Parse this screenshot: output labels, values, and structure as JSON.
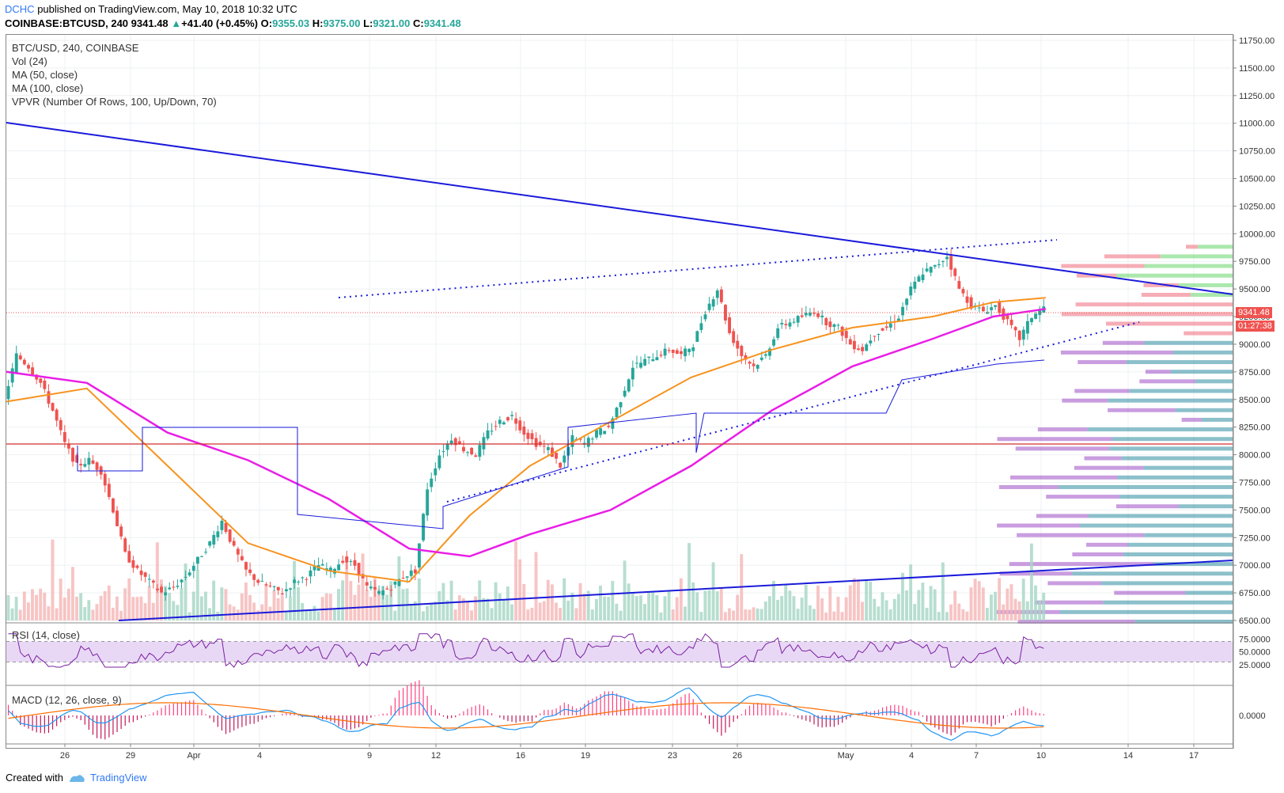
{
  "header": {
    "user": "DCHC",
    "published": "published on TradingView.com, May 10, 2018 10:32 UTC",
    "symbol": "COINBASE:BTCUSD, 240",
    "last": "9341.48",
    "change": "+41.40 (+0.45%)",
    "o_label": "O:",
    "o": "9355.03",
    "h_label": "H:",
    "h": "9375.00",
    "l_label": "L:",
    "l": "9321.00",
    "c_label": "C:",
    "c": "9341.48"
  },
  "legend": {
    "symbol": "BTC/USD, 240, COINBASE",
    "vol": "Vol (24)",
    "ma50": "MA (50, close)",
    "ma100": "MA (100, close)",
    "vpvr": "VPVR (Number Of Rows, 100, Up/Down, 70)",
    "rsi": "RSI (14, close)",
    "macd": "MACD (12, 26, close, 9)"
  },
  "price_tags": {
    "last": "9341.48",
    "countdown": "01:27:38"
  },
  "footer": {
    "created_with": "Created with",
    "brand": "TradingView"
  },
  "colors": {
    "up": "#26a69a",
    "down": "#ef5350",
    "ma50": "#f7931e",
    "ma100": "#e91ee6",
    "trend": "#1a1adb",
    "rsi": "#7b1fa2",
    "rsi_band": "#e8d8f5",
    "macd": "#2196f3",
    "signal": "#ff6d00"
  },
  "chart_data": {
    "type": "candlestick",
    "ylim": [
      6500,
      11800
    ],
    "y_ticks": [
      "11750.00",
      "11500.00",
      "11250.00",
      "11000.00",
      "10750.00",
      "10500.00",
      "10250.00",
      "10000.00",
      "9750.00",
      "9500.00",
      "9250.00",
      "9000.00",
      "8750.00",
      "8500.00",
      "8250.00",
      "8000.00",
      "7750.00",
      "7500.00",
      "7250.00",
      "7000.00",
      "6750.00",
      "6500.00"
    ],
    "y_tick_values": [
      11750,
      11500,
      11250,
      11000,
      10750,
      10500,
      10250,
      10000,
      9750,
      9500,
      9250,
      9000,
      8750,
      8500,
      8250,
      8000,
      7750,
      7500,
      7250,
      7000,
      6750,
      6500
    ],
    "x_ticks": [
      "26",
      "29",
      "Apr",
      "4",
      "9",
      "12",
      "16",
      "19",
      "23",
      "26",
      "May",
      "4",
      "7",
      "10",
      "14",
      "17"
    ],
    "close_path": [
      [
        0,
        8500
      ],
      [
        3,
        8900
      ],
      [
        6,
        8800
      ],
      [
        9,
        8650
      ],
      [
        12,
        8400
      ],
      [
        15,
        8100
      ],
      [
        18,
        7900
      ],
      [
        21,
        7950
      ],
      [
        24,
        7850
      ],
      [
        27,
        7500
      ],
      [
        30,
        7100
      ],
      [
        33,
        6950
      ],
      [
        36,
        6850
      ],
      [
        39,
        6750
      ],
      [
        42,
        6800
      ],
      [
        45,
        6900
      ],
      [
        48,
        7050
      ],
      [
        51,
        7200
      ],
      [
        54,
        7400
      ],
      [
        57,
        7150
      ],
      [
        60,
        6950
      ],
      [
        63,
        6850
      ],
      [
        66,
        6800
      ],
      [
        69,
        6750
      ],
      [
        72,
        6850
      ],
      [
        75,
        6900
      ],
      [
        78,
        7000
      ],
      [
        81,
        6950
      ],
      [
        84,
        7050
      ],
      [
        87,
        7000
      ],
      [
        90,
        6800
      ],
      [
        93,
        6750
      ],
      [
        96,
        6800
      ],
      [
        99,
        6900
      ],
      [
        102,
        6950
      ],
      [
        105,
        7700
      ],
      [
        108,
        8000
      ],
      [
        111,
        8150
      ],
      [
        114,
        8050
      ],
      [
        117,
        8000
      ],
      [
        120,
        8200
      ],
      [
        123,
        8300
      ],
      [
        126,
        8350
      ],
      [
        129,
        8200
      ],
      [
        132,
        8100
      ],
      [
        135,
        8050
      ],
      [
        138,
        7900
      ],
      [
        141,
        8150
      ],
      [
        144,
        8100
      ],
      [
        147,
        8200
      ],
      [
        150,
        8250
      ],
      [
        153,
        8500
      ],
      [
        156,
        8800
      ],
      [
        159,
        8850
      ],
      [
        162,
        8900
      ],
      [
        165,
        8950
      ],
      [
        168,
        8900
      ],
      [
        171,
        9000
      ],
      [
        174,
        9300
      ],
      [
        177,
        9500
      ],
      [
        180,
        9100
      ],
      [
        183,
        8900
      ],
      [
        186,
        8800
      ],
      [
        189,
        8900
      ],
      [
        192,
        9150
      ],
      [
        195,
        9200
      ],
      [
        198,
        9250
      ],
      [
        201,
        9300
      ],
      [
        204,
        9200
      ],
      [
        207,
        9150
      ],
      [
        210,
        9000
      ],
      [
        213,
        8950
      ],
      [
        216,
        9100
      ],
      [
        219,
        9150
      ],
      [
        222,
        9250
      ],
      [
        225,
        9500
      ],
      [
        228,
        9650
      ],
      [
        231,
        9700
      ],
      [
        234,
        9800
      ],
      [
        237,
        9500
      ],
      [
        240,
        9350
      ],
      [
        243,
        9300
      ],
      [
        246,
        9350
      ],
      [
        249,
        9200
      ],
      [
        252,
        9050
      ],
      [
        255,
        9250
      ],
      [
        258,
        9340
      ]
    ],
    "ma50_path": [
      [
        0,
        8480
      ],
      [
        20,
        8600
      ],
      [
        40,
        7900
      ],
      [
        60,
        7200
      ],
      [
        80,
        6950
      ],
      [
        100,
        6850
      ],
      [
        115,
        7450
      ],
      [
        130,
        7900
      ],
      [
        150,
        8300
      ],
      [
        170,
        8700
      ],
      [
        190,
        8950
      ],
      [
        210,
        9150
      ],
      [
        230,
        9250
      ],
      [
        245,
        9380
      ],
      [
        258,
        9420
      ]
    ],
    "ma100_path": [
      [
        0,
        8750
      ],
      [
        20,
        8650
      ],
      [
        40,
        8200
      ],
      [
        60,
        7950
      ],
      [
        80,
        7600
      ],
      [
        100,
        7150
      ],
      [
        115,
        7080
      ],
      [
        130,
        7280
      ],
      [
        150,
        7500
      ],
      [
        170,
        7900
      ],
      [
        190,
        8400
      ],
      [
        210,
        8800
      ],
      [
        230,
        9050
      ],
      [
        245,
        9250
      ],
      [
        258,
        9320
      ]
    ],
    "volume_profile_rows": 40,
    "rsi": {
      "ylim": [
        0,
        100
      ],
      "ticks": [
        "75.0000",
        "50.0000",
        "25.0000"
      ],
      "tick_values": [
        75,
        50,
        25
      ],
      "band": [
        30,
        70
      ]
    },
    "macd": {
      "ticks": [
        "0.0000"
      ]
    }
  }
}
